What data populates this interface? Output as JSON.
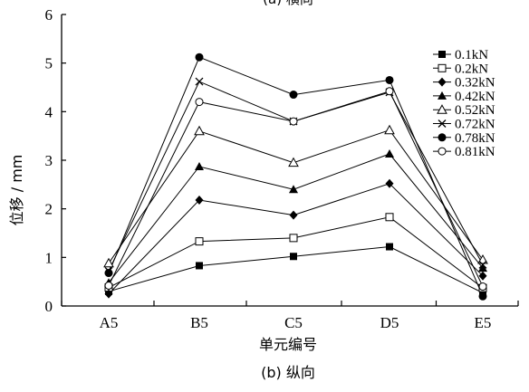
{
  "top_caption": "(a) 横向",
  "bottom_caption": "(b) 纵向",
  "chart_data": {
    "type": "line",
    "title": "",
    "xlabel": "单元编号",
    "ylabel": "位移 / mm",
    "categories": [
      "A5",
      "B5",
      "C5",
      "D5",
      "E5"
    ],
    "ylim": [
      0,
      6
    ],
    "yticks": [
      0,
      1,
      2,
      3,
      4,
      5,
      6
    ],
    "ytick_labels": [
      "0",
      "1",
      "2",
      "3",
      "4",
      "5",
      "6"
    ],
    "grid": false,
    "legend_position": "right",
    "series": [
      {
        "name": "0.1kN",
        "marker": "square-filled",
        "values": [
          0.3,
          0.83,
          1.02,
          1.22,
          0.27
        ]
      },
      {
        "name": "0.2kN",
        "marker": "square-open",
        "values": [
          0.38,
          1.33,
          1.4,
          1.83,
          0.37
        ]
      },
      {
        "name": "0.32kN",
        "marker": "diamond-filled",
        "values": [
          0.25,
          2.18,
          1.87,
          2.52,
          0.62
        ]
      },
      {
        "name": "0.42kN",
        "marker": "triangle-filled",
        "values": [
          0.48,
          2.87,
          2.4,
          3.13,
          0.78
        ]
      },
      {
        "name": "0.52kN",
        "marker": "triangle-open",
        "values": [
          0.88,
          3.6,
          2.95,
          3.62,
          0.95
        ]
      },
      {
        "name": "0.72kN",
        "marker": "x",
        "values": [
          0.72,
          4.62,
          3.8,
          4.4,
          0.85
        ]
      },
      {
        "name": "0.78kN",
        "marker": "circle-filled",
        "values": [
          0.68,
          5.12,
          4.35,
          4.65,
          0.2
        ]
      },
      {
        "name": "0.81kN",
        "marker": "circle-open",
        "values": [
          0.42,
          4.2,
          3.8,
          4.42,
          0.4
        ]
      }
    ]
  }
}
